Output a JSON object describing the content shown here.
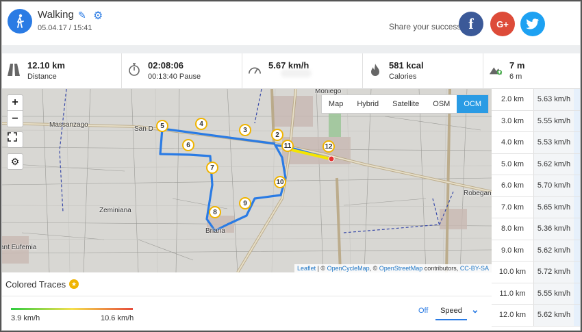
{
  "header": {
    "title": "Walking",
    "date": "05.04.17 / 15:41",
    "share_text": "Share your success",
    "share": {
      "facebook": "f",
      "google": "G+"
    }
  },
  "stats": [
    {
      "icon": "road-icon",
      "value": "12.10 km",
      "label": "Distance"
    },
    {
      "icon": "stopwatch-icon",
      "value": "02:08:06",
      "label": "00:13:40 Pause"
    },
    {
      "icon": "speedometer-icon",
      "value": "5.67 km/h",
      "label": ""
    },
    {
      "icon": "flame-icon",
      "value": "581 kcal",
      "label": "Calories"
    },
    {
      "icon": "elevation-icon",
      "value": "7 m",
      "label": "6 m"
    }
  ],
  "map": {
    "zoom_in": "+",
    "zoom_out": "−",
    "layers": [
      "Map",
      "Hybrid",
      "Satellite",
      "OSM",
      "OCM"
    ],
    "active_layer": "OCM",
    "places": [
      "Moniego",
      "Massanzago",
      "San D",
      "Robegan",
      "Zeminiana",
      "Briana",
      "ant Eufemia"
    ],
    "markers": [
      "2",
      "3",
      "4",
      "5",
      "6",
      "7",
      "8",
      "9",
      "10",
      "11",
      "12"
    ],
    "attribution": {
      "leaflet": "Leaflet",
      "sep1": " | © ",
      "ocm": "OpenCycleMap",
      "sep2": ", © ",
      "osm": "OpenStreetMap",
      "contrib": " contributors, ",
      "license": "CC-BY-SA"
    }
  },
  "splits": [
    {
      "km": "2.0 km",
      "speed": "5.63 km/h"
    },
    {
      "km": "3.0 km",
      "speed": "5.55 km/h"
    },
    {
      "km": "4.0 km",
      "speed": "5.53 km/h"
    },
    {
      "km": "5.0 km",
      "speed": "5.62 km/h"
    },
    {
      "km": "6.0 km",
      "speed": "5.70 km/h"
    },
    {
      "km": "7.0 km",
      "speed": "5.65 km/h"
    },
    {
      "km": "8.0 km",
      "speed": "5.36 km/h"
    },
    {
      "km": "9.0 km",
      "speed": "5.62 km/h"
    },
    {
      "km": "10.0 km",
      "speed": "5.72 km/h"
    },
    {
      "km": "11.0 km",
      "speed": "5.55 km/h"
    },
    {
      "km": "12.0 km",
      "speed": "5.62 km/h"
    }
  ],
  "colored_traces": {
    "title": "Colored Traces",
    "min": "3.9 km/h",
    "max": "10.6 km/h",
    "off": "Off",
    "selected": "Speed",
    "colors": {
      "low": "#2ecc40",
      "mid": "#f4e04d",
      "high": "#e74c3c"
    }
  },
  "colors": {
    "accent": "#2a7be4",
    "facebook": "#3b5998",
    "google": "#dd4b39",
    "twitter": "#1da1f2",
    "route": "#2a7be4",
    "marker": "#f0b400"
  }
}
